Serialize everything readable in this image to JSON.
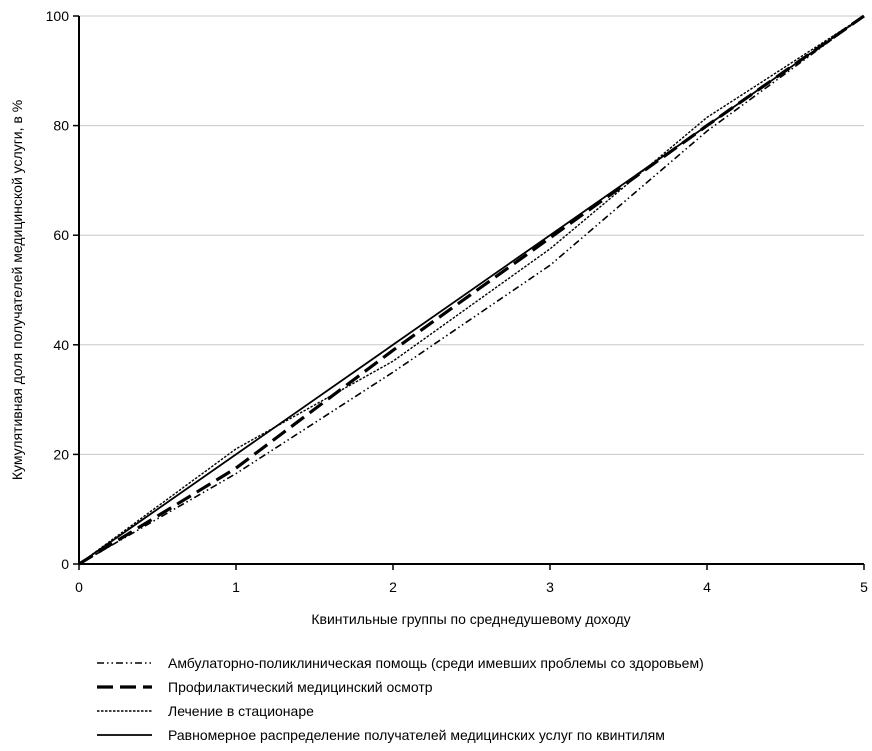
{
  "chart_data": {
    "type": "line",
    "xlabel": "Квинтильные группы по среднедушевому доходу",
    "ylabel": "Кумулятивная доля получателей медицинской услуги, в %",
    "xlim": [
      0,
      5
    ],
    "ylim": [
      0,
      100
    ],
    "x_ticks": [
      "0",
      "1",
      "2",
      "3",
      "4",
      "5"
    ],
    "y_ticks": [
      "0",
      "20",
      "40",
      "60",
      "80",
      "100"
    ],
    "grid": "horizontal",
    "legend_position": "bottom",
    "x": [
      0,
      1,
      2,
      3,
      4,
      5
    ],
    "series": [
      {
        "name": "Амбулаторно-поликлиническая помощь (среди имевших проблемы со здоровьем)",
        "style": "dash-dot-dot",
        "color": "#000000",
        "values": [
          0,
          16.5,
          35,
          54.5,
          79,
          100
        ]
      },
      {
        "name": "Профилактический медицинский осмотр",
        "style": "long-dash",
        "color": "#000000",
        "values": [
          0,
          17.5,
          39,
          59.5,
          80,
          100
        ]
      },
      {
        "name": "Лечение в стационаре",
        "style": "dotted",
        "color": "#000000",
        "values": [
          0,
          21,
          37,
          57.5,
          81.5,
          100
        ]
      },
      {
        "name": "Равномерное распределение получателей медицинских услуг по квинтилям",
        "style": "solid",
        "color": "#000000",
        "values": [
          0,
          20,
          40,
          60,
          80,
          100
        ]
      }
    ]
  }
}
